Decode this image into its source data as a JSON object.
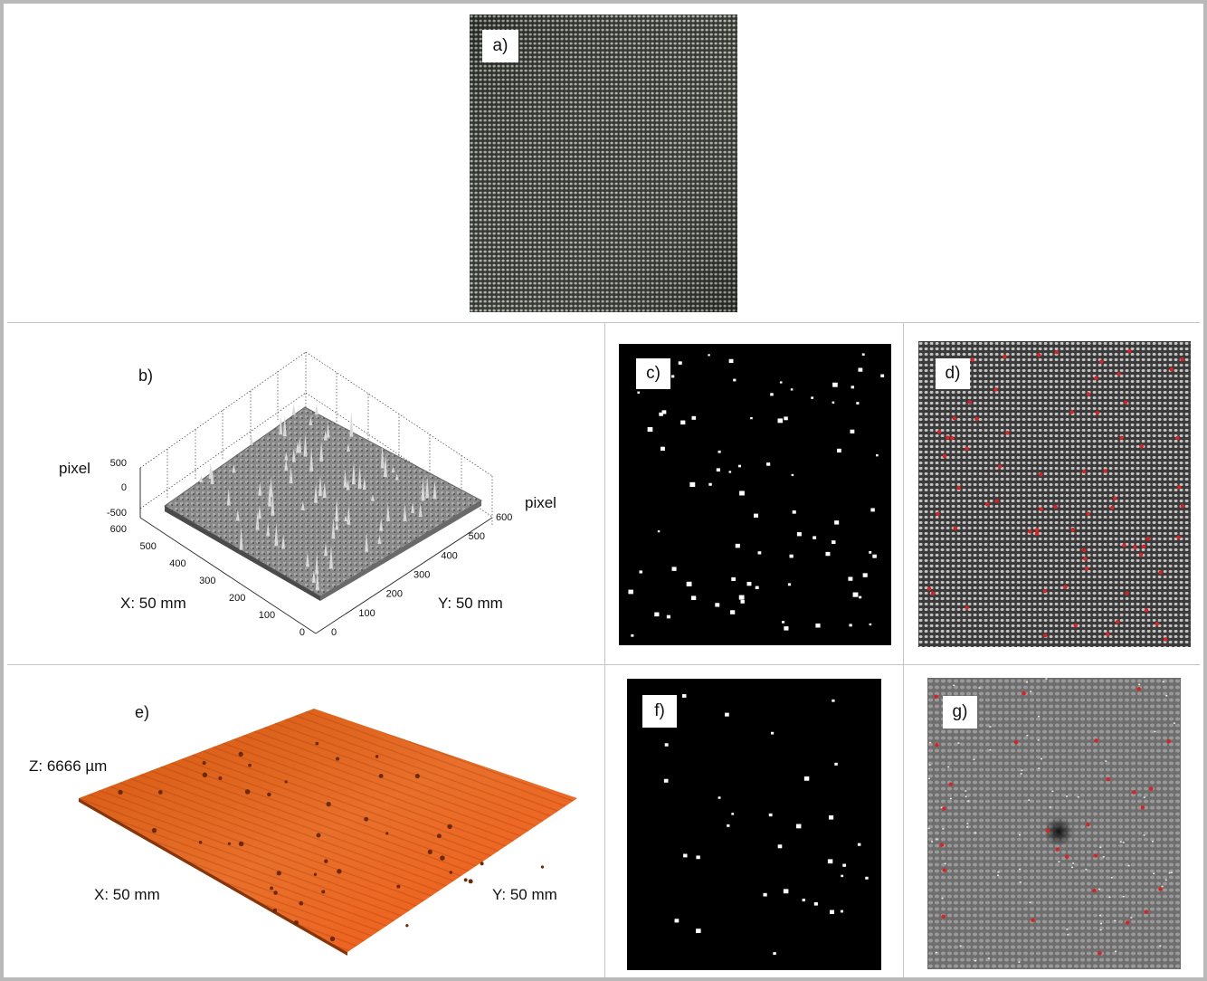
{
  "panels": {
    "a": {
      "label": "a)"
    },
    "b": {
      "label": "b)",
      "z_axis_label": "pixel",
      "y_axis_unit_label": "pixel",
      "x_axis_caption": "X: 50 mm",
      "y_axis_caption": "Y: 50 mm",
      "z_ticks": [
        "500",
        "0",
        "-500"
      ],
      "x_ticks": [
        "600",
        "500",
        "400",
        "300",
        "200",
        "100",
        "0"
      ],
      "y_ticks": [
        "0",
        "100",
        "200",
        "300",
        "400",
        "500",
        "600"
      ]
    },
    "c": {
      "label": "c)"
    },
    "d": {
      "label": "d)"
    },
    "e": {
      "label": "e)",
      "z_caption": "Z: 6666 µm",
      "x_caption": "X: 50 mm",
      "y_caption": "Y: 50 mm"
    },
    "f": {
      "label": "f)"
    },
    "g": {
      "label": "g)"
    }
  },
  "colors": {
    "frame_border": "#b9b9b9",
    "grid_line": "#c4c4c4",
    "defect_marker": "#e02020",
    "surface_orange": "#e8601a",
    "fabric_dark": "#2a2d28"
  }
}
